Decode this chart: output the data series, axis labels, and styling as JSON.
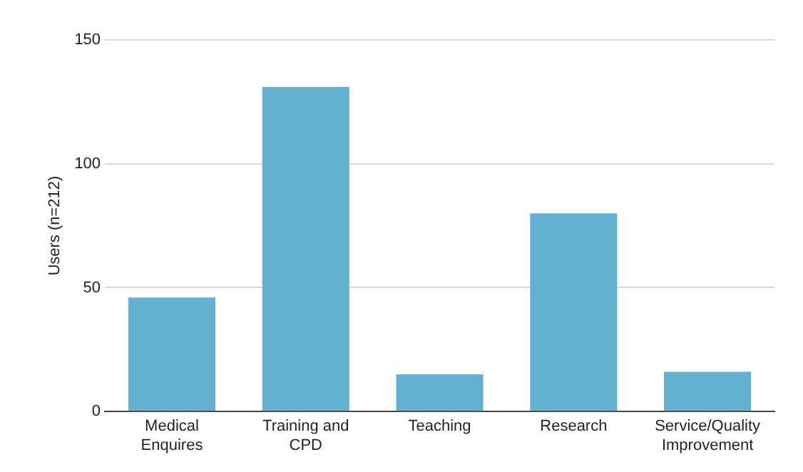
{
  "chart_data": {
    "type": "bar",
    "ylabel": "Users (n=212)",
    "categories": [
      "Medical Enquires",
      "Training and CPD",
      "Teaching",
      "Research",
      "Service/Quality Improvement"
    ],
    "values": [
      46,
      131,
      15,
      80,
      16
    ],
    "color": "#63b0d1",
    "ylim": [
      0,
      150
    ],
    "yticks": [
      0,
      50,
      100,
      150
    ],
    "grid": "y"
  }
}
